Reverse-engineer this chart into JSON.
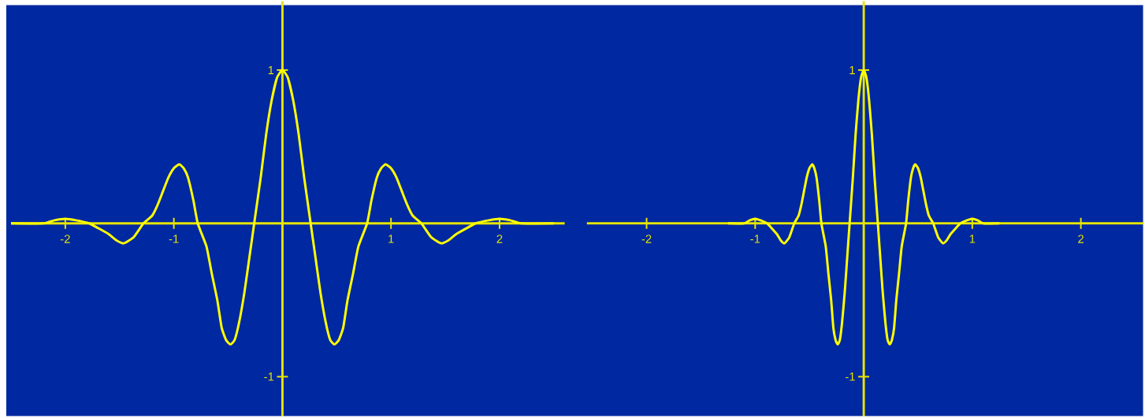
{
  "chart_data": [
    {
      "type": "line",
      "xlim": [
        -2.5,
        2.6
      ],
      "ylim": [
        -1.26,
        1.45
      ],
      "xticks": [
        -2,
        -1,
        1,
        2
      ],
      "yticks": [
        -1,
        1
      ],
      "grid": false,
      "marker": "none",
      "line_style": "solid",
      "series": [
        {
          "color": "#ffff00",
          "x": [
            -2.5,
            -2.2,
            -2.1,
            -2.0,
            -1.9,
            -1.78,
            -1.7,
            -1.6,
            -1.53,
            -1.46,
            -1.37,
            -1.28,
            -1.2,
            -1.15,
            -1.1,
            -1.05,
            -1.0,
            -0.95,
            -0.91,
            -0.87,
            -0.82,
            -0.78,
            -0.7,
            -0.65,
            -0.6,
            -0.56,
            -0.52,
            -0.48,
            -0.44,
            -0.4,
            -0.35,
            -0.3,
            -0.26,
            -0.2,
            -0.15,
            -0.1,
            -0.05,
            0,
            0.05,
            0.1,
            0.15,
            0.2,
            0.26,
            0.3,
            0.35,
            0.4,
            0.44,
            0.48,
            0.52,
            0.56,
            0.6,
            0.65,
            0.7,
            0.78,
            0.82,
            0.87,
            0.91,
            0.95,
            1.0,
            1.05,
            1.1,
            1.15,
            1.2,
            1.28,
            1.37,
            1.46,
            1.53,
            1.6,
            1.7,
            1.78,
            1.9,
            2.0,
            2.1,
            2.2,
            2.5
          ],
          "values": [
            0,
            0,
            0.02,
            0.03,
            0.02,
            0,
            -0.03,
            -0.07,
            -0.11,
            -0.13,
            -0.09,
            0,
            0.05,
            0.12,
            0.21,
            0.3,
            0.36,
            0.385,
            0.36,
            0.3,
            0.15,
            0,
            -0.15,
            -0.33,
            -0.5,
            -0.68,
            -0.76,
            -0.79,
            -0.76,
            -0.65,
            -0.45,
            -0.2,
            0,
            0.3,
            0.58,
            0.8,
            0.95,
            1,
            0.95,
            0.8,
            0.58,
            0.3,
            0,
            -0.2,
            -0.45,
            -0.65,
            -0.76,
            -0.79,
            -0.76,
            -0.68,
            -0.5,
            -0.33,
            -0.15,
            0,
            0.15,
            0.3,
            0.36,
            0.385,
            0.36,
            0.3,
            0.21,
            0.12,
            0.05,
            0,
            -0.09,
            -0.13,
            -0.11,
            -0.07,
            -0.03,
            0,
            0.02,
            0.03,
            0.02,
            0,
            0
          ]
        }
      ]
    },
    {
      "type": "line",
      "xlim": [
        -2.55,
        2.58
      ],
      "ylim": [
        -1.26,
        1.45
      ],
      "xticks": [
        -2,
        -1,
        1,
        2
      ],
      "yticks": [
        -1,
        1
      ],
      "grid": false,
      "marker": "none",
      "line_style": "solid",
      "series": [
        {
          "color": "#ffff00",
          "x": [
            -1.25,
            -1.1,
            -1.05,
            -1.0,
            -0.95,
            -0.89,
            -0.85,
            -0.8,
            -0.765,
            -0.73,
            -0.685,
            -0.64,
            -0.6,
            -0.575,
            -0.55,
            -0.525,
            -0.5,
            -0.475,
            -0.455,
            -0.435,
            -0.41,
            -0.39,
            -0.35,
            -0.325,
            -0.3,
            -0.28,
            -0.26,
            -0.24,
            -0.22,
            -0.2,
            -0.175,
            -0.15,
            -0.13,
            -0.1,
            -0.075,
            -0.05,
            -0.025,
            0,
            0.025,
            0.05,
            0.075,
            0.1,
            0.13,
            0.15,
            0.175,
            0.2,
            0.22,
            0.24,
            0.26,
            0.28,
            0.3,
            0.325,
            0.35,
            0.39,
            0.41,
            0.435,
            0.455,
            0.475,
            0.5,
            0.525,
            0.55,
            0.575,
            0.6,
            0.64,
            0.685,
            0.73,
            0.765,
            0.8,
            0.85,
            0.89,
            0.95,
            1.0,
            1.05,
            1.1,
            1.25
          ],
          "values": [
            0,
            0,
            0.02,
            0.03,
            0.02,
            0,
            -0.03,
            -0.07,
            -0.11,
            -0.13,
            -0.09,
            0,
            0.05,
            0.12,
            0.21,
            0.3,
            0.36,
            0.385,
            0.36,
            0.3,
            0.15,
            0,
            -0.15,
            -0.33,
            -0.5,
            -0.68,
            -0.76,
            -0.79,
            -0.76,
            -0.65,
            -0.45,
            -0.2,
            0,
            0.3,
            0.58,
            0.8,
            0.95,
            1,
            0.95,
            0.8,
            0.58,
            0.3,
            0,
            -0.2,
            -0.45,
            -0.65,
            -0.76,
            -0.79,
            -0.76,
            -0.68,
            -0.5,
            -0.33,
            -0.15,
            0,
            0.15,
            0.3,
            0.36,
            0.385,
            0.36,
            0.3,
            0.21,
            0.12,
            0.05,
            0,
            -0.09,
            -0.13,
            -0.11,
            -0.07,
            -0.03,
            0,
            0.02,
            0.03,
            0.02,
            0,
            0
          ]
        }
      ]
    }
  ]
}
